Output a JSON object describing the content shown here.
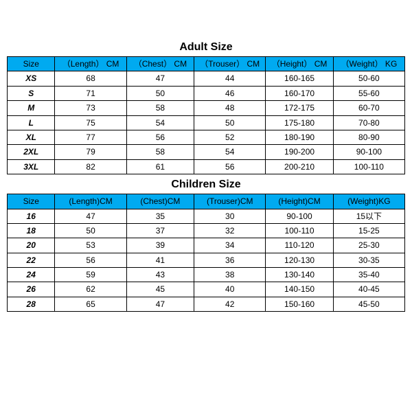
{
  "adult": {
    "title": "Adult Size",
    "title_fontsize": 16,
    "columns": [
      "Size",
      "（Length） CM",
      "（Chest） CM",
      "（Trouser） CM",
      "（Height） CM",
      "（Weight） KG"
    ],
    "rows": [
      [
        "XS",
        "68",
        "47",
        "44",
        "160-165",
        "50-60"
      ],
      [
        "S",
        "71",
        "50",
        "46",
        "160-170",
        "55-60"
      ],
      [
        "M",
        "73",
        "58",
        "48",
        "172-175",
        "60-70"
      ],
      [
        "L",
        "75",
        "54",
        "50",
        "175-180",
        "70-80"
      ],
      [
        "XL",
        "77",
        "56",
        "52",
        "180-190",
        "80-90"
      ],
      [
        "2XL",
        "79",
        "58",
        "54",
        "190-200",
        "90-100"
      ],
      [
        "3XL",
        "82",
        "61",
        "56",
        "200-210",
        "100-110"
      ]
    ],
    "column_widths_pct": [
      12,
      18,
      17,
      18,
      17,
      18
    ],
    "header_bg": "#00aaf0",
    "header_fg": "#000000",
    "header_fontsize": 12,
    "body_fontsize": 12,
    "border_color": "#000000",
    "body_bg": "#ffffff"
  },
  "children": {
    "title": "Children Size",
    "title_fontsize": 16,
    "columns": [
      "Size",
      "(Length)CM",
      "(Chest)CM",
      "(Trouser)CM",
      "(Height)CM",
      "(Weight)KG"
    ],
    "rows": [
      [
        "16",
        "47",
        "35",
        "30",
        "90-100",
        "15以下"
      ],
      [
        "18",
        "50",
        "37",
        "32",
        "100-110",
        "15-25"
      ],
      [
        "20",
        "53",
        "39",
        "34",
        "110-120",
        "25-30"
      ],
      [
        "22",
        "56",
        "41",
        "36",
        "120-130",
        "30-35"
      ],
      [
        "24",
        "59",
        "43",
        "38",
        "130-140",
        "35-40"
      ],
      [
        "26",
        "62",
        "45",
        "40",
        "140-150",
        "40-45"
      ],
      [
        "28",
        "65",
        "47",
        "42",
        "150-160",
        "45-50"
      ]
    ],
    "column_widths_pct": [
      12,
      18,
      17,
      18,
      17,
      18
    ],
    "header_bg": "#00aaf0",
    "header_fg": "#000000",
    "header_fontsize": 12,
    "body_fontsize": 12,
    "border_color": "#000000",
    "body_bg": "#ffffff"
  }
}
